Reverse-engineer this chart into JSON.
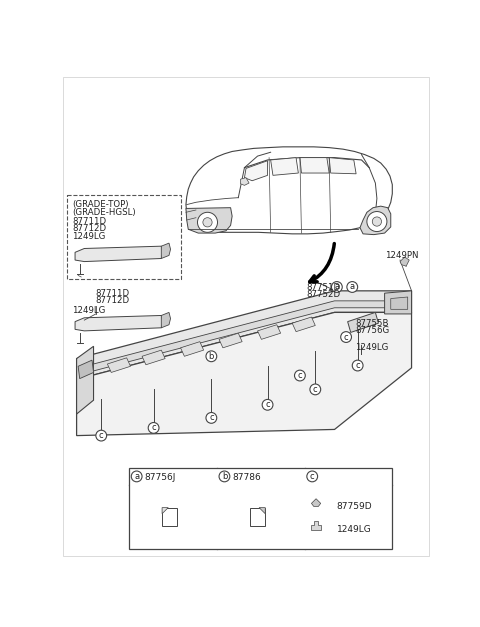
{
  "bg_color": "#ffffff",
  "fig_width": 4.8,
  "fig_height": 6.27,
  "dpi": 100,
  "parts": {
    "legend_a": "87756J",
    "legend_b": "87786",
    "legend_c1": "87759D",
    "legend_c2": "1249LG"
  },
  "labels": {
    "grade_top": "(GRADE-TOP)",
    "grade_hgsl": "(GRADE-HGSL)",
    "p87711D": "87711D",
    "p87712D": "87712D",
    "p1249LG": "1249LG",
    "p87751D": "87751D",
    "p87752D": "87752D",
    "p1249PN": "1249PN",
    "p87755B": "87755B",
    "p87756G": "87756G"
  }
}
